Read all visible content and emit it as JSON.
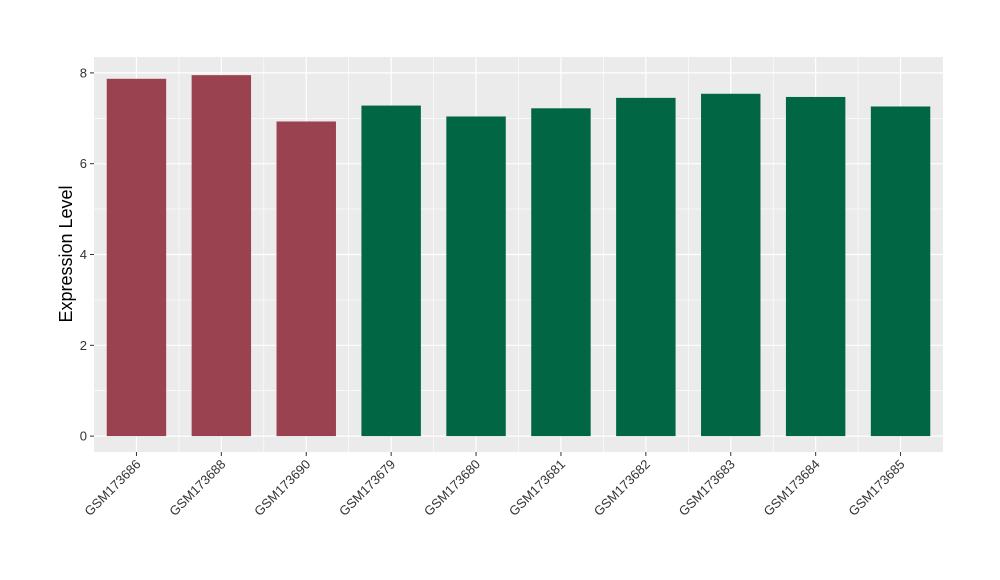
{
  "chart_data": {
    "type": "bar",
    "title": "",
    "xlabel": "",
    "ylabel": "Expression Level",
    "categories": [
      "GSM173686",
      "GSM173688",
      "GSM173690",
      "GSM173679",
      "GSM173680",
      "GSM173681",
      "GSM173682",
      "GSM173683",
      "GSM173684",
      "GSM173685"
    ],
    "values": [
      7.87,
      7.95,
      6.93,
      7.28,
      7.04,
      7.22,
      7.45,
      7.54,
      7.47,
      7.26
    ],
    "bar_colors": [
      "#9b4250",
      "#9b4250",
      "#9b4250",
      "#006644",
      "#006644",
      "#006644",
      "#006644",
      "#006644",
      "#006644",
      "#006644"
    ],
    "ylim": [
      -0.35,
      8.35
    ],
    "yticks": [
      0,
      2,
      4,
      6,
      8
    ],
    "grid": true,
    "legend": "none"
  },
  "colors": {
    "panel_background": "#ebebeb",
    "gridline": "#ffffff",
    "group_a": "#9b4250",
    "group_b": "#006644"
  }
}
